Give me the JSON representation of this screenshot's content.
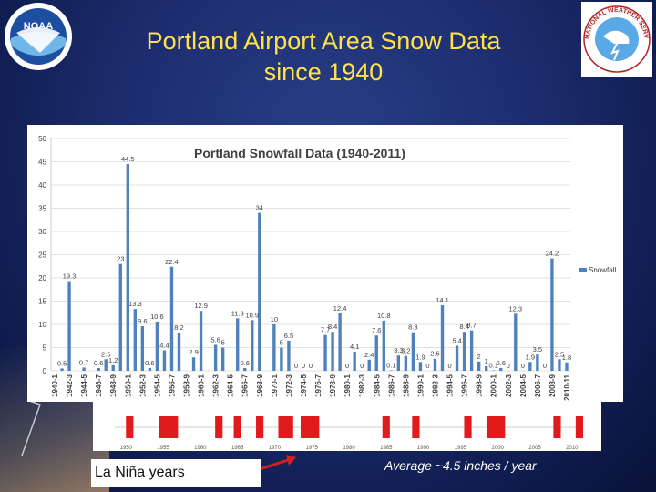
{
  "slide": {
    "title_line1": "Portland Airport Area Snow Data",
    "title_line2": "since 1940",
    "noaa_logo_text": "NOAA",
    "nws_logo_text": "NATIONAL WEATHER SERVICE",
    "lanina_label": "La Niña years",
    "average_note": "Average ~4.5 inches / year"
  },
  "colors": {
    "title": "#ffe24a",
    "bar": "#4f81bd",
    "la_nina": "#e31a1c"
  },
  "chart_data": {
    "type": "bar",
    "title": "Portland Snowfall Data (1940-2011)",
    "categories": [
      "1940-1",
      "1941-2",
      "1942-3",
      "1943-4",
      "1944-5",
      "1945-6",
      "1946-7",
      "1947-8",
      "1948-9",
      "1949-50",
      "1950-1",
      "1951-2",
      "1952-3",
      "1953-4",
      "1954-5",
      "1955-6",
      "1956-7",
      "1957-8",
      "1958-9",
      "1959-60",
      "1960-1",
      "1961-2",
      "1962-3",
      "1963-4",
      "1964-5",
      "1965-6",
      "1966-7",
      "1967-8",
      "1968-9",
      "1969-70",
      "1970-1",
      "1971-2",
      "1972-3",
      "1973-4",
      "1974-5",
      "1975-6",
      "1976-7",
      "1977-8",
      "1978-9",
      "1979-80",
      "1980-1",
      "1981-2",
      "1982-3",
      "1983-4",
      "1984-5",
      "1985-6",
      "1986-7",
      "1987-8",
      "1988-9",
      "1989-90",
      "1990-1",
      "1991-2",
      "1992-3",
      "1993-4",
      "1994-5",
      "1995-6",
      "1996-7",
      "1997-8",
      "1998-9",
      "1999-00",
      "2000-1",
      "2001-2",
      "2002-3",
      "2003-4",
      "2004-5",
      "2005-6",
      "2006-7",
      "2007-8",
      "2008-9",
      "2009-10",
      "2010-11"
    ],
    "x_tick_labels": [
      "1940-1",
      "1942-3",
      "1944-5",
      "1946-7",
      "1948-9",
      "1950-1",
      "1952-3",
      "1954-5",
      "1956-7",
      "1958-9",
      "1960-1",
      "1962-3",
      "1964-5",
      "1966-7",
      "1968-9",
      "1970-1",
      "1972-3",
      "1974-5",
      "1976-7",
      "1978-9",
      "1980-1",
      "1982-3",
      "1984-5",
      "1986-7",
      "1988-9",
      "1990-1",
      "1992-3",
      "1994-5",
      "1996-7",
      "1998-9",
      "2000-1",
      "2002-3",
      "2004-5",
      "2006-7",
      "2008-9",
      "2010-11"
    ],
    "series": [
      {
        "name": "Snowfall",
        "values": [
          0,
          0.5,
          19.3,
          0,
          0.7,
          0,
          0.6,
          2.5,
          1.2,
          23,
          44.5,
          13.3,
          9.6,
          0.6,
          10.6,
          4.4,
          22.4,
          8.2,
          0,
          2.9,
          12.9,
          0,
          5.6,
          5,
          0,
          11.3,
          0.6,
          10.9,
          34,
          0,
          10,
          5,
          6.5,
          0,
          0,
          0,
          0,
          7.7,
          8.4,
          12.4,
          0,
          4.1,
          0,
          2.4,
          7.6,
          10.8,
          0.1,
          3.3,
          3.2,
          8.3,
          1.9,
          0,
          2.6,
          14.1,
          0,
          5.4,
          8.4,
          8.7,
          2,
          1,
          0.1,
          0.6,
          0,
          12.3,
          0,
          1.9,
          3.5,
          0,
          24.2,
          2.5,
          1.8
        ]
      }
    ],
    "data_labels": [
      {
        "index": 1,
        "text": "0.5"
      },
      {
        "index": 2,
        "text": "19.3"
      },
      {
        "index": 4,
        "text": "0.7"
      },
      {
        "index": 6,
        "text": "0.6"
      },
      {
        "index": 7,
        "text": "2.5"
      },
      {
        "index": 8,
        "text": "1.2"
      },
      {
        "index": 9,
        "text": "23"
      },
      {
        "index": 10,
        "text": "44.5"
      },
      {
        "index": 11,
        "text": "13.3"
      },
      {
        "index": 12,
        "text": "9.6"
      },
      {
        "index": 13,
        "text": "0.6"
      },
      {
        "index": 14,
        "text": "10.6"
      },
      {
        "index": 15,
        "text": "4.4"
      },
      {
        "index": 16,
        "text": "22.4"
      },
      {
        "index": 17,
        "text": "8.2"
      },
      {
        "index": 19,
        "text": "2.9"
      },
      {
        "index": 20,
        "text": "12.9"
      },
      {
        "index": 22,
        "text": "5.6"
      },
      {
        "index": 23,
        "text": "5"
      },
      {
        "index": 25,
        "text": "11.3"
      },
      {
        "index": 26,
        "text": "0.6"
      },
      {
        "index": 27,
        "text": "10.9"
      },
      {
        "index": 28,
        "text": "34"
      },
      {
        "index": 30,
        "text": "10"
      },
      {
        "index": 31,
        "text": "5"
      },
      {
        "index": 32,
        "text": "6.5"
      },
      {
        "index": 33,
        "text": "0"
      },
      {
        "index": 34,
        "text": "0"
      },
      {
        "index": 35,
        "text": "0"
      },
      {
        "index": 37,
        "text": "7.7"
      },
      {
        "index": 38,
        "text": "8.4"
      },
      {
        "index": 39,
        "text": "12.4"
      },
      {
        "index": 40,
        "text": "0"
      },
      {
        "index": 41,
        "text": "4.1"
      },
      {
        "index": 42,
        "text": "0"
      },
      {
        "index": 43,
        "text": "2.4"
      },
      {
        "index": 44,
        "text": "7.6"
      },
      {
        "index": 45,
        "text": "10.8"
      },
      {
        "index": 46,
        "text": "0.1"
      },
      {
        "index": 47,
        "text": "3.3"
      },
      {
        "index": 48,
        "text": "3.2"
      },
      {
        "index": 49,
        "text": "8.3"
      },
      {
        "index": 50,
        "text": "1.9"
      },
      {
        "index": 51,
        "text": "0"
      },
      {
        "index": 52,
        "text": "2.6"
      },
      {
        "index": 53,
        "text": "14.1"
      },
      {
        "index": 54,
        "text": "0"
      },
      {
        "index": 55,
        "text": "5.4"
      },
      {
        "index": 56,
        "text": "8.4"
      },
      {
        "index": 57,
        "text": "8.7"
      },
      {
        "index": 58,
        "text": "2"
      },
      {
        "index": 59,
        "text": "1"
      },
      {
        "index": 60,
        "text": "0.1"
      },
      {
        "index": 61,
        "text": "0.6"
      },
      {
        "index": 62,
        "text": "0"
      },
      {
        "index": 63,
        "text": "12.3"
      },
      {
        "index": 64,
        "text": "0"
      },
      {
        "index": 65,
        "text": "1.9"
      },
      {
        "index": 66,
        "text": "3.5"
      },
      {
        "index": 67,
        "text": "0"
      },
      {
        "index": 68,
        "text": "24.2"
      },
      {
        "index": 69,
        "text": "2.5"
      },
      {
        "index": 70,
        "text": "1.8"
      }
    ],
    "ylim": [
      0,
      50
    ],
    "y_ticks": [
      0,
      5,
      10,
      15,
      20,
      25,
      30,
      35,
      40,
      45,
      50
    ],
    "xlabel": "",
    "ylabel": "",
    "grid": true,
    "legend_position": "right"
  },
  "la_nina_timeline": {
    "axis_labels": [
      1950,
      1955,
      1960,
      1965,
      1970,
      1975,
      1980,
      1985,
      1990,
      1995,
      2000,
      2005,
      2010
    ],
    "x_range": [
      1948.5,
      2011.5
    ],
    "periods": [
      [
        1950.0,
        1951.0
      ],
      [
        1954.5,
        1957.0
      ],
      [
        1962.0,
        1963.0
      ],
      [
        1964.5,
        1965.5
      ],
      [
        1967.5,
        1968.5
      ],
      [
        1970.5,
        1972.5
      ],
      [
        1973.5,
        1976.0
      ],
      [
        1984.5,
        1985.5
      ],
      [
        1988.5,
        1989.5
      ],
      [
        1995.5,
        1996.5
      ],
      [
        1998.5,
        2001.0
      ],
      [
        2007.5,
        2008.5
      ],
      [
        2010.5,
        2011.5
      ]
    ]
  }
}
